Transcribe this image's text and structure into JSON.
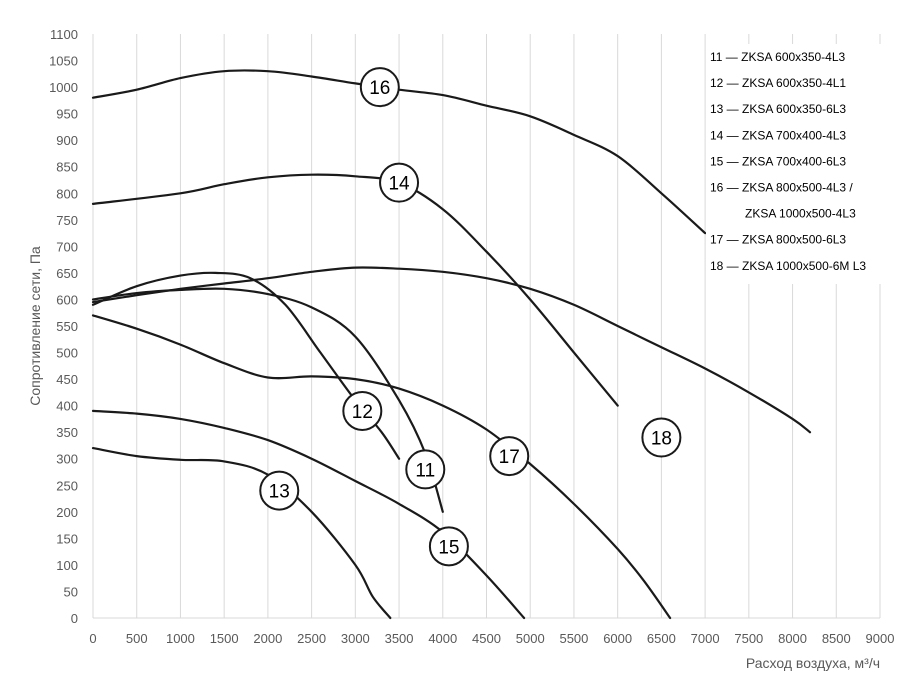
{
  "chart_data": {
    "type": "line",
    "xlabel": "Расход воздуха, м³/ч",
    "ylabel": "Сопротивление сети, Па",
    "xlim": [
      0,
      9000
    ],
    "ylim": [
      0,
      1100
    ],
    "xticks": [
      "0",
      "500",
      "1000",
      "1500",
      "2000",
      "2500",
      "3000",
      "3500",
      "4000",
      "4500",
      "5000",
      "5500",
      "6000",
      "6500",
      "7000",
      "7500",
      "8000",
      "8500",
      "9000"
    ],
    "yticks": [
      "0",
      "50",
      "100",
      "150",
      "200",
      "250",
      "300",
      "350",
      "400",
      "450",
      "500",
      "550",
      "600",
      "650",
      "700",
      "750",
      "800",
      "850",
      "900",
      "950",
      "1000",
      "1050",
      "1100"
    ],
    "grid": "vertical",
    "legend_position": "top-right",
    "legend": [
      "11 — ZKSA 600x350-4L3",
      "12 — ZKSA 600x350-4L1",
      "13 — ZKSA 600x350-6L3",
      "14 — ZKSA 700x400-4L3",
      "15 — ZKSA 700x400-6L3",
      "16 — ZKSA 800x500-4L3 /",
      "ZKSA 1000x500-4L3",
      "17 — ZKSA 800x500-6L3",
      "18 — ZKSA 1000x500-6M L3"
    ],
    "series": [
      {
        "name": "11",
        "label_at": [
          3800,
          280
        ],
        "points": [
          [
            0,
            600
          ],
          [
            500,
            612
          ],
          [
            1000,
            618
          ],
          [
            1500,
            620
          ],
          [
            2000,
            610
          ],
          [
            2500,
            585
          ],
          [
            3000,
            530
          ],
          [
            3500,
            410
          ],
          [
            3800,
            310
          ],
          [
            4000,
            200
          ]
        ]
      },
      {
        "name": "12",
        "label_at": [
          3080,
          390
        ],
        "points": [
          [
            0,
            590
          ],
          [
            500,
            625
          ],
          [
            1000,
            645
          ],
          [
            1400,
            650
          ],
          [
            1800,
            640
          ],
          [
            2200,
            590
          ],
          [
            2600,
            500
          ],
          [
            3000,
            410
          ],
          [
            3300,
            350
          ],
          [
            3500,
            300
          ]
        ]
      },
      {
        "name": "13",
        "label_at": [
          2130,
          240
        ],
        "points": [
          [
            0,
            320
          ],
          [
            500,
            305
          ],
          [
            1000,
            298
          ],
          [
            1500,
            295
          ],
          [
            2000,
            270
          ],
          [
            2500,
            200
          ],
          [
            3000,
            100
          ],
          [
            3200,
            40
          ],
          [
            3400,
            0
          ]
        ]
      },
      {
        "name": "14",
        "label_at": [
          3500,
          820
        ],
        "points": [
          [
            0,
            780
          ],
          [
            1000,
            800
          ],
          [
            1500,
            817
          ],
          [
            2000,
            830
          ],
          [
            2500,
            835
          ],
          [
            3000,
            832
          ],
          [
            3500,
            820
          ],
          [
            4000,
            770
          ],
          [
            4500,
            690
          ],
          [
            5000,
            600
          ],
          [
            5500,
            500
          ],
          [
            6000,
            400
          ]
        ]
      },
      {
        "name": "15",
        "label_at": [
          4070,
          135
        ],
        "points": [
          [
            0,
            390
          ],
          [
            500,
            385
          ],
          [
            1000,
            375
          ],
          [
            1500,
            358
          ],
          [
            2000,
            335
          ],
          [
            2500,
            300
          ],
          [
            3000,
            258
          ],
          [
            3500,
            215
          ],
          [
            4000,
            162
          ],
          [
            4500,
            80
          ],
          [
            4930,
            0
          ]
        ]
      },
      {
        "name": "16",
        "label_at": [
          3280,
          1000
        ],
        "points": [
          [
            0,
            980
          ],
          [
            500,
            995
          ],
          [
            1000,
            1017
          ],
          [
            1500,
            1030
          ],
          [
            2000,
            1030
          ],
          [
            2500,
            1020
          ],
          [
            3000,
            1007
          ],
          [
            3500,
            995
          ],
          [
            4000,
            985
          ],
          [
            4500,
            965
          ],
          [
            5000,
            945
          ],
          [
            5500,
            910
          ],
          [
            6000,
            870
          ],
          [
            6500,
            800
          ],
          [
            7000,
            725
          ]
        ]
      },
      {
        "name": "17",
        "label_at": [
          4760,
          305
        ],
        "points": [
          [
            0,
            570
          ],
          [
            500,
            545
          ],
          [
            1000,
            515
          ],
          [
            1500,
            480
          ],
          [
            2000,
            453
          ],
          [
            2500,
            455
          ],
          [
            3000,
            450
          ],
          [
            3500,
            432
          ],
          [
            4000,
            400
          ],
          [
            4500,
            355
          ],
          [
            5000,
            290
          ],
          [
            5500,
            215
          ],
          [
            6000,
            130
          ],
          [
            6300,
            70
          ],
          [
            6600,
            0
          ]
        ]
      },
      {
        "name": "18",
        "label_at": [
          6500,
          340
        ],
        "points": [
          [
            0,
            595
          ],
          [
            500,
            608
          ],
          [
            1000,
            620
          ],
          [
            1500,
            630
          ],
          [
            2000,
            640
          ],
          [
            2500,
            652
          ],
          [
            3000,
            660
          ],
          [
            3500,
            658
          ],
          [
            4000,
            652
          ],
          [
            4500,
            640
          ],
          [
            5000,
            620
          ],
          [
            5500,
            590
          ],
          [
            6000,
            550
          ],
          [
            6500,
            510
          ],
          [
            7000,
            470
          ],
          [
            7500,
            425
          ],
          [
            8000,
            375
          ],
          [
            8200,
            350
          ]
        ]
      }
    ]
  }
}
